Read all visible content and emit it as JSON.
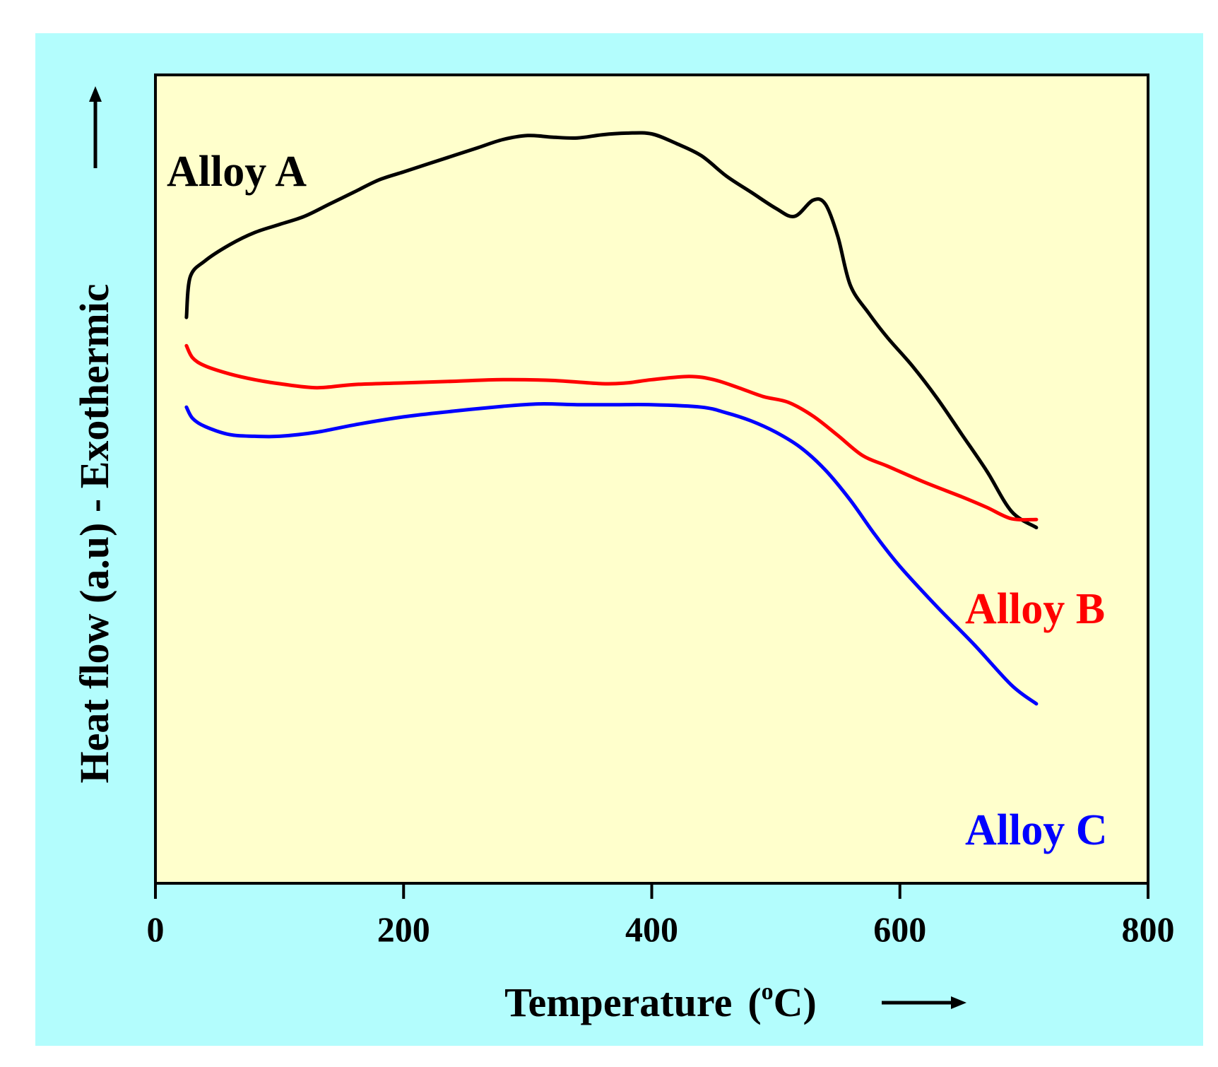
{
  "chart_data": {
    "type": "line",
    "title": "",
    "xlabel": "Temperature",
    "xlabel_superscript": "o",
    "xlabel_unit": "C",
    "xlabel_open_paren": "(",
    "xlabel_close_paren": ")",
    "ylabel": "Heat flow (a.u) - Exothermic",
    "xlim": [
      0,
      800
    ],
    "ylim": [
      0,
      100
    ],
    "xticks": [
      "0",
      "200",
      "400",
      "600",
      "800"
    ],
    "yticks": [],
    "grid": false,
    "legend": "inline labels near curves",
    "colors": {
      "outer_background": "#b3fdfd",
      "plot_background": "#ffffcc"
    },
    "series": [
      {
        "name": "Alloy A",
        "color": "#000000",
        "x": [
          25,
          28,
          40,
          60,
          80,
          100,
          120,
          140,
          160,
          180,
          200,
          220,
          240,
          260,
          280,
          300,
          320,
          340,
          360,
          380,
          400,
          420,
          440,
          460,
          480,
          500,
          515,
          530,
          540,
          550,
          560,
          575,
          590,
          610,
          630,
          650,
          670,
          690,
          710
        ],
        "y": [
          70,
          75,
          77,
          79,
          80.5,
          81.5,
          82.5,
          84,
          85.5,
          87,
          88,
          89,
          90,
          91,
          92,
          92.5,
          92.3,
          92.2,
          92.6,
          92.8,
          92.7,
          91.5,
          90,
          87.5,
          85.5,
          83.5,
          82.5,
          84.5,
          84,
          80,
          74,
          70.5,
          67.5,
          64,
          60,
          55.5,
          51,
          46,
          44
        ]
      },
      {
        "name": "Alloy B",
        "color": "#ff0000",
        "x": [
          25,
          30,
          40,
          60,
          80,
          100,
          130,
          160,
          200,
          240,
          280,
          320,
          360,
          380,
          400,
          430,
          450,
          470,
          490,
          510,
          530,
          550,
          570,
          590,
          620,
          650,
          670,
          690,
          710
        ],
        "y": [
          66.5,
          65,
          64,
          63,
          62.3,
          61.8,
          61.3,
          61.7,
          61.9,
          62.1,
          62.3,
          62.2,
          61.8,
          61.9,
          62.3,
          62.7,
          62.3,
          61.3,
          60.2,
          59.5,
          57.8,
          55.4,
          52.9,
          51.6,
          49.6,
          47.8,
          46.5,
          45.1,
          45
        ]
      },
      {
        "name": "Alloy C",
        "color": "#0000ff",
        "x": [
          25,
          30,
          40,
          60,
          80,
          100,
          130,
          160,
          200,
          240,
          280,
          310,
          340,
          370,
          400,
          440,
          460,
          480,
          500,
          520,
          540,
          560,
          580,
          600,
          630,
          660,
          690,
          710
        ],
        "y": [
          58.9,
          57.5,
          56.5,
          55.5,
          55.3,
          55.3,
          55.8,
          56.7,
          57.7,
          58.4,
          59,
          59.3,
          59.2,
          59.2,
          59.2,
          58.9,
          58.2,
          57.2,
          55.8,
          53.9,
          51.1,
          47.4,
          43.1,
          39.2,
          34.2,
          29.5,
          24.5,
          22.2
        ]
      }
    ]
  }
}
